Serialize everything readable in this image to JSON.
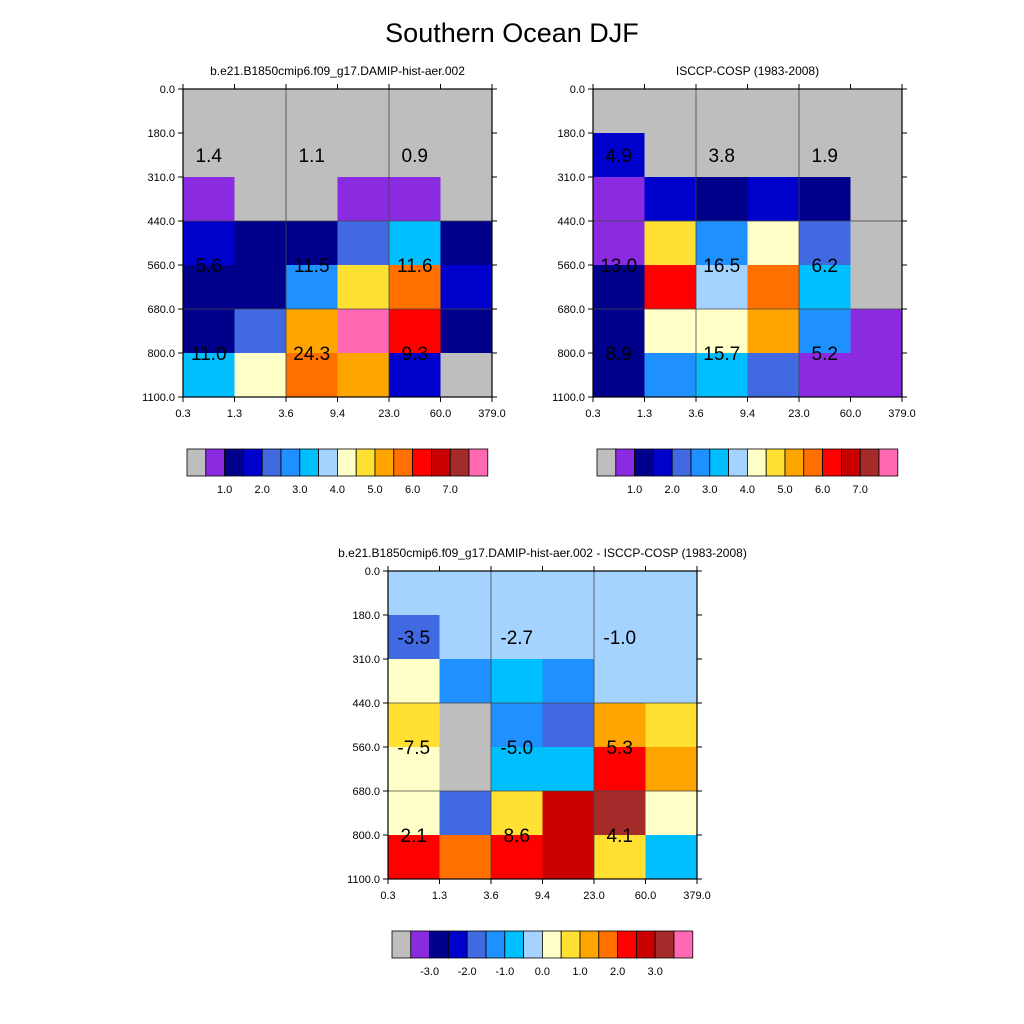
{
  "title": "Southern Ocean DJF",
  "colors": {
    "full": [
      "#bebebe",
      "#8a2be2",
      "#00008b",
      "#0000cd",
      "#4169e1",
      "#1e90ff",
      "#00bfff",
      "#a4d3ff",
      "#ffffc8",
      "#ffe033",
      "#ffa500",
      "#ff7000",
      "#ff0000",
      "#c80000",
      "#a52a2a",
      "#ff69b4"
    ],
    "diff": [
      "#bebebe",
      "#8a2be2",
      "#00008b",
      "#0000cd",
      "#4169e1",
      "#1e90ff",
      "#00bfff",
      "#a4d3ff",
      "#ffffc8",
      "#ffe033",
      "#ffa500",
      "#ff7000",
      "#ff0000",
      "#c80000",
      "#a52a2a",
      "#ff69b4"
    ]
  },
  "chart_data": [
    {
      "type": "heatmap",
      "title": "b.e21.B1850cmip6.f09_g17.DAMIP-hist-aer.002",
      "x_ticks": [
        "0.3",
        "1.3",
        "3.6",
        "9.4",
        "23.0",
        "60.0",
        "379.0"
      ],
      "y_ticks": [
        "0.0",
        "180.0",
        "310.0",
        "440.0",
        "560.0",
        "680.0",
        "800.0",
        "1100.0"
      ],
      "cells": [
        [
          0,
          0,
          0,
          0,
          0,
          0
        ],
        [
          0,
          0,
          0,
          0,
          0,
          0
        ],
        [
          1,
          0,
          0,
          1,
          1,
          0
        ],
        [
          3,
          2,
          2,
          4,
          6,
          2
        ],
        [
          2,
          2,
          5,
          9,
          11,
          3
        ],
        [
          2,
          4,
          10,
          15,
          12,
          2
        ],
        [
          6,
          8,
          11,
          10,
          3,
          0
        ]
      ],
      "annotations": [
        {
          "col": 0.5,
          "row": 1.5,
          "text": "1.4"
        },
        {
          "col": 2.5,
          "row": 1.5,
          "text": "1.1"
        },
        {
          "col": 4.5,
          "row": 1.5,
          "text": "0.9"
        },
        {
          "col": 0.5,
          "row": 4.0,
          "text": "5.6"
        },
        {
          "col": 2.5,
          "row": 4.0,
          "text": "11.5"
        },
        {
          "col": 4.5,
          "row": 4.0,
          "text": "11.6"
        },
        {
          "col": 0.5,
          "row": 6.0,
          "text": "11.0"
        },
        {
          "col": 2.5,
          "row": 6.0,
          "text": "24.3"
        },
        {
          "col": 4.5,
          "row": 6.0,
          "text": "9.3"
        }
      ],
      "colorbar": {
        "palette": "full",
        "labels": [
          "1.0",
          "2.0",
          "3.0",
          "4.0",
          "5.0",
          "6.0",
          "7.0"
        ]
      }
    },
    {
      "type": "heatmap",
      "title": "ISCCP-COSP (1983-2008)",
      "x_ticks": [
        "0.3",
        "1.3",
        "3.6",
        "9.4",
        "23.0",
        "60.0",
        "379.0"
      ],
      "y_ticks": [
        "0.0",
        "180.0",
        "310.0",
        "440.0",
        "560.0",
        "680.0",
        "800.0",
        "1100.0"
      ],
      "cells": [
        [
          0,
          0,
          0,
          0,
          0,
          0
        ],
        [
          3,
          0,
          0,
          0,
          0,
          0
        ],
        [
          1,
          3,
          2,
          3,
          2,
          0
        ],
        [
          1,
          9,
          5,
          8,
          4,
          0
        ],
        [
          2,
          12,
          7,
          11,
          6,
          0
        ],
        [
          2,
          8,
          8,
          10,
          5,
          1
        ],
        [
          2,
          5,
          6,
          4,
          1,
          1
        ]
      ],
      "annotations": [
        {
          "col": 0.5,
          "row": 1.5,
          "text": "4.9"
        },
        {
          "col": 2.5,
          "row": 1.5,
          "text": "3.8"
        },
        {
          "col": 4.5,
          "row": 1.5,
          "text": "1.9"
        },
        {
          "col": 0.5,
          "row": 4.0,
          "text": "13.0"
        },
        {
          "col": 2.5,
          "row": 4.0,
          "text": "16.5"
        },
        {
          "col": 4.5,
          "row": 4.0,
          "text": "6.2"
        },
        {
          "col": 0.5,
          "row": 6.0,
          "text": "8.9"
        },
        {
          "col": 2.5,
          "row": 6.0,
          "text": "15.7"
        },
        {
          "col": 4.5,
          "row": 6.0,
          "text": "5.2"
        }
      ],
      "colorbar": {
        "palette": "full",
        "labels": [
          "1.0",
          "2.0",
          "3.0",
          "4.0",
          "5.0",
          "6.0",
          "7.0"
        ]
      }
    },
    {
      "type": "heatmap",
      "title": "b.e21.B1850cmip6.f09_g17.DAMIP-hist-aer.002 - ISCCP-COSP (1983-2008)",
      "x_ticks": [
        "0.3",
        "1.3",
        "3.6",
        "9.4",
        "23.0",
        "60.0",
        "379.0"
      ],
      "y_ticks": [
        "0.0",
        "180.0",
        "310.0",
        "440.0",
        "560.0",
        "680.0",
        "800.0",
        "1100.0"
      ],
      "cells": [
        [
          7,
          7,
          7,
          7,
          7,
          7
        ],
        [
          4,
          7,
          7,
          7,
          7,
          7
        ],
        [
          8,
          5,
          6,
          5,
          7,
          7
        ],
        [
          9,
          0,
          5,
          4,
          10,
          9
        ],
        [
          8,
          0,
          6,
          6,
          12,
          10
        ],
        [
          8,
          4,
          9,
          13,
          14,
          8
        ],
        [
          12,
          11,
          12,
          13,
          9,
          6
        ]
      ],
      "annotations": [
        {
          "col": 0.5,
          "row": 1.5,
          "text": "-3.5"
        },
        {
          "col": 2.5,
          "row": 1.5,
          "text": "-2.7"
        },
        {
          "col": 4.5,
          "row": 1.5,
          "text": "-1.0"
        },
        {
          "col": 0.5,
          "row": 4.0,
          "text": "-7.5"
        },
        {
          "col": 2.5,
          "row": 4.0,
          "text": "-5.0"
        },
        {
          "col": 4.5,
          "row": 4.0,
          "text": "5.3"
        },
        {
          "col": 0.5,
          "row": 6.0,
          "text": "2.1"
        },
        {
          "col": 2.5,
          "row": 6.0,
          "text": "8.6"
        },
        {
          "col": 4.5,
          "row": 6.0,
          "text": "4.1"
        }
      ],
      "colorbar": {
        "palette": "diff",
        "labels": [
          "-3.0",
          "-2.0",
          "-1.0",
          "0.0",
          "1.0",
          "2.0",
          "3.0"
        ]
      }
    }
  ]
}
